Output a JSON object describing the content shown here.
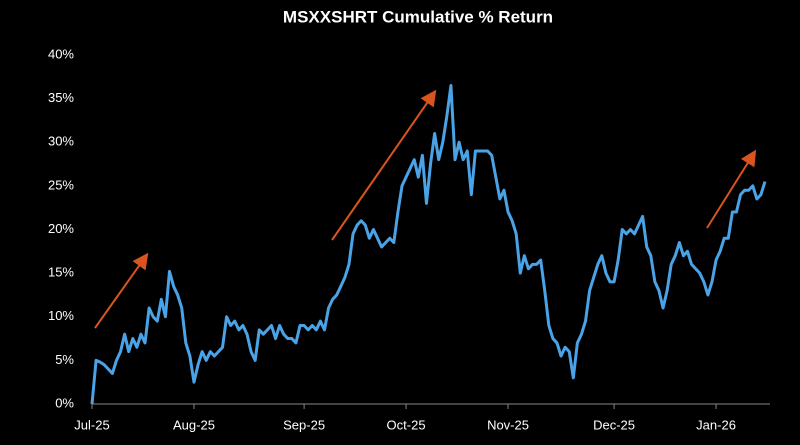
{
  "chart_data": {
    "type": "line",
    "title": "MSXXSHRT Cumulative % Return",
    "categories": [
      "Jul-25",
      null,
      null,
      null,
      null,
      null,
      null,
      null,
      null,
      null,
      null,
      null,
      null,
      null,
      null,
      null,
      null,
      null,
      null,
      null,
      null,
      null,
      null,
      null,
      null,
      "Aug-25",
      null,
      null,
      null,
      null,
      null,
      null,
      null,
      null,
      null,
      null,
      null,
      null,
      null,
      null,
      null,
      null,
      null,
      null,
      null,
      null,
      null,
      null,
      null,
      null,
      null,
      null,
      "Sep-25",
      null,
      null,
      null,
      null,
      null,
      null,
      null,
      null,
      null,
      null,
      null,
      null,
      null,
      null,
      null,
      null,
      null,
      null,
      null,
      null,
      null,
      null,
      null,
      null,
      "Oct-25",
      null,
      null,
      null,
      null,
      null,
      null,
      null,
      null,
      null,
      null,
      null,
      null,
      null,
      null,
      null,
      null,
      null,
      null,
      null,
      null,
      null,
      null,
      null,
      null,
      "Nov-25",
      null,
      null,
      null,
      null,
      null,
      null,
      null,
      null,
      null,
      null,
      null,
      null,
      null,
      null,
      null,
      null,
      null,
      null,
      null,
      null,
      null,
      null,
      null,
      null,
      null,
      "Dec-25",
      null,
      null,
      null,
      null,
      null,
      null,
      null,
      null,
      null,
      null,
      null,
      null,
      null,
      null,
      null,
      null,
      null,
      null,
      null,
      null,
      null,
      null,
      null,
      null,
      "Jan-26",
      null,
      null,
      null,
      null,
      null,
      null,
      null,
      null,
      null,
      null,
      null,
      null
    ],
    "values": [
      0,
      5,
      4.8,
      4.5,
      4,
      3.5,
      5,
      6,
      8,
      6,
      7.5,
      6.5,
      8,
      7,
      11,
      10,
      9.5,
      12,
      10,
      15.2,
      13.5,
      12.5,
      11,
      7,
      5.5,
      2.5,
      4.5,
      6,
      5,
      6,
      5.5,
      6,
      6.5,
      10,
      9,
      9.5,
      8.5,
      9,
      8,
      6,
      5,
      8.5,
      8,
      8.5,
      9,
      7.5,
      9,
      8,
      7.5,
      7.5,
      7,
      9,
      9,
      8.5,
      9,
      8.5,
      9.5,
      8.5,
      11,
      12,
      12.5,
      13.5,
      14.5,
      16,
      19.5,
      20.5,
      21,
      20.5,
      19,
      20,
      19,
      18,
      18.5,
      19,
      18.5,
      22,
      25,
      26,
      27,
      28,
      26,
      28.5,
      23,
      27.5,
      31,
      28,
      30,
      33,
      36.5,
      28,
      30,
      28,
      29,
      24,
      29,
      29,
      29,
      29,
      28.5,
      26,
      23.5,
      24.5,
      22,
      21,
      19.5,
      15,
      17,
      15.5,
      16,
      16,
      16.5,
      13,
      9,
      7.5,
      7,
      5.5,
      6.5,
      6,
      3,
      7,
      8,
      9.5,
      13,
      14.5,
      16,
      17,
      15,
      14,
      14,
      16.5,
      20,
      19.5,
      20,
      19.5,
      20.5,
      21.5,
      18,
      17,
      14,
      13,
      11,
      13,
      16,
      17,
      18.5,
      17,
      17.5,
      16,
      15.5,
      15,
      14,
      12.5,
      14,
      16.5,
      17.5,
      19,
      19,
      22,
      22,
      24,
      24.5,
      24.5,
      25,
      23.5,
      24,
      25.5
    ],
    "color": "#4aa3e6",
    "ylim": [
      0,
      40
    ],
    "yticks": [
      {
        "value": 0,
        "label": "0%"
      },
      {
        "value": 5,
        "label": "5%"
      },
      {
        "value": 10,
        "label": "10%"
      },
      {
        "value": 15,
        "label": "15%"
      },
      {
        "value": 20,
        "label": "20%"
      },
      {
        "value": 25,
        "label": "25%"
      },
      {
        "value": 30,
        "label": "30%"
      },
      {
        "value": 35,
        "label": "35%"
      },
      {
        "value": 40,
        "label": "40%"
      }
    ],
    "grid": false
  }
}
